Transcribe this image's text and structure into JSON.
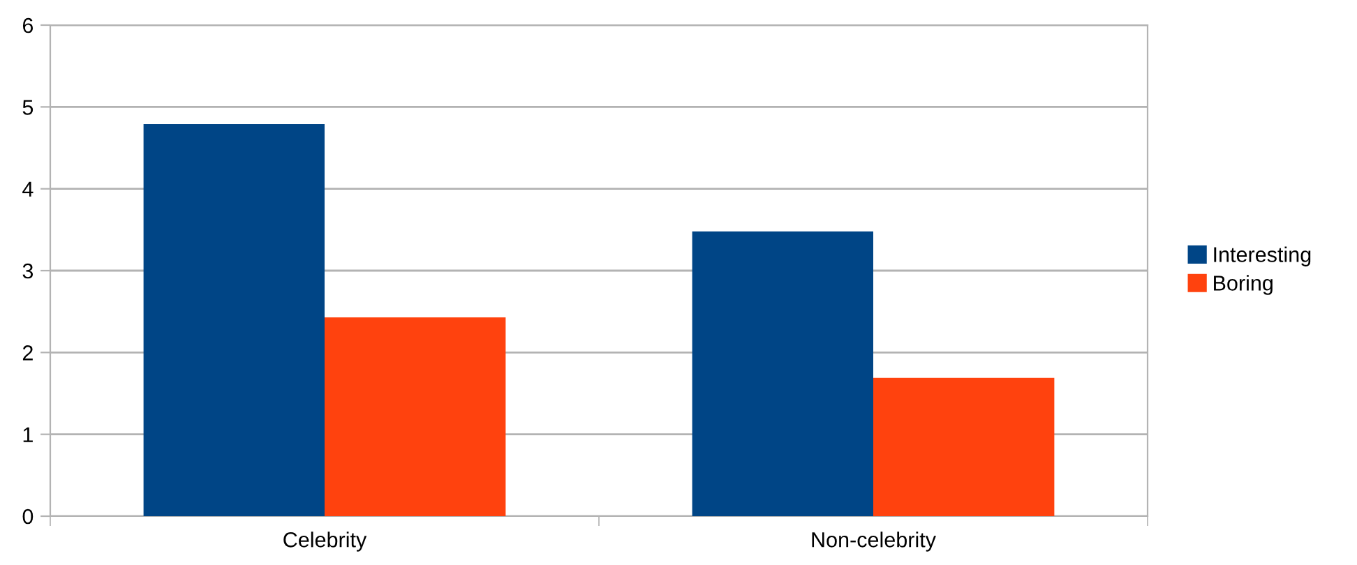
{
  "chart_data": {
    "type": "bar",
    "categories": [
      "Celebrity",
      "Non-celebrity"
    ],
    "series": [
      {
        "name": "Interesting",
        "color": "#004586",
        "values": [
          4.79,
          3.48
        ]
      },
      {
        "name": "Boring",
        "color": "#ff420e",
        "values": [
          2.43,
          1.69
        ]
      }
    ],
    "ylim": [
      0,
      6
    ],
    "yticks": [
      0,
      1,
      2,
      3,
      4,
      5,
      6
    ],
    "grid": "y",
    "legend": "right"
  }
}
